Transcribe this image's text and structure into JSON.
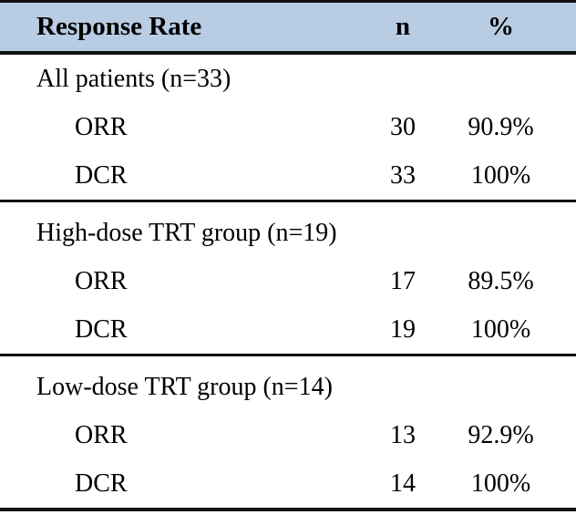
{
  "table_title": "Response Rate",
  "header": {
    "col_label": "Response Rate",
    "col_n": "n",
    "col_pct": "%"
  },
  "colors": {
    "header_bg": "#b8cce4",
    "rule": "#111111",
    "text": "#000000"
  },
  "sections": [
    {
      "group_label": "All patients (n=33)",
      "rows": [
        {
          "label": "ORR",
          "n": "30",
          "pct": "90.9%"
        },
        {
          "label": "DCR",
          "n": "33",
          "pct": "100%"
        }
      ]
    },
    {
      "group_label": "High-dose TRT group (n=19)",
      "rows": [
        {
          "label": "ORR",
          "n": "17",
          "pct": "89.5%"
        },
        {
          "label": "DCR",
          "n": "19",
          "pct": "100%"
        }
      ]
    },
    {
      "group_label": "Low-dose TRT group (n=14)",
      "rows": [
        {
          "label": "ORR",
          "n": "13",
          "pct": "92.9%"
        },
        {
          "label": "DCR",
          "n": "14",
          "pct": "100%"
        }
      ]
    }
  ],
  "chart_data": {
    "type": "table",
    "title": "Response Rate",
    "columns": [
      "Response Rate",
      "n",
      "%"
    ],
    "rows": [
      {
        "group": "All patients (n=33)",
        "measure": "ORR",
        "n": 30,
        "percent": "90.9%"
      },
      {
        "group": "All patients (n=33)",
        "measure": "DCR",
        "n": 33,
        "percent": "100%"
      },
      {
        "group": "High-dose TRT group (n=19)",
        "measure": "ORR",
        "n": 17,
        "percent": "89.5%"
      },
      {
        "group": "High-dose TRT group (n=19)",
        "measure": "DCR",
        "n": 19,
        "percent": "100%"
      },
      {
        "group": "Low-dose TRT group (n=14)",
        "measure": "ORR",
        "n": 13,
        "percent": "92.9%"
      },
      {
        "group": "Low-dose TRT group (n=14)",
        "measure": "DCR",
        "n": 14,
        "percent": "100%"
      }
    ]
  }
}
